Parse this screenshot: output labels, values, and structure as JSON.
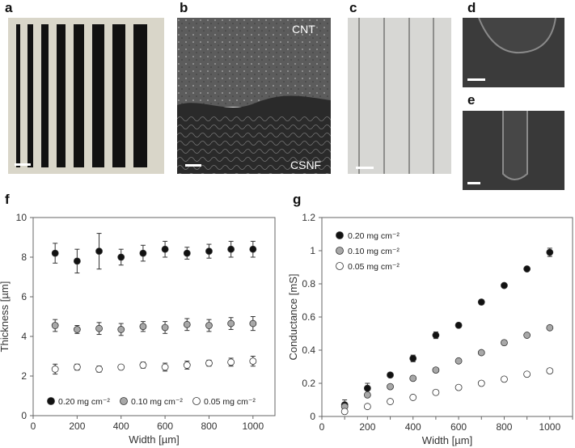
{
  "panels": {
    "a": "a",
    "b": "b",
    "c": "c",
    "d": "d",
    "e": "e",
    "f": "f",
    "g": "g"
  },
  "micrograph_labels": {
    "top": "CNT",
    "bottom": "CSNF"
  },
  "chart_data": [
    {
      "type": "scatter",
      "panel": "f",
      "xlabel": "Width [µm]",
      "ylabel": "Thickness [µm]",
      "xlim": [
        0,
        1100
      ],
      "ylim": [
        0,
        10
      ],
      "xticks": [
        0,
        200,
        400,
        600,
        800,
        1000
      ],
      "yticks": [
        0,
        2,
        4,
        6,
        8,
        10
      ],
      "grid": false,
      "legend_position": "bottom",
      "series": [
        {
          "name": "0.20 mg cm⁻²",
          "fill": "#111111",
          "x": [
            100,
            200,
            300,
            400,
            500,
            600,
            700,
            800,
            900,
            1000
          ],
          "y": [
            8.2,
            7.8,
            8.3,
            8.0,
            8.2,
            8.4,
            8.2,
            8.3,
            8.4,
            8.4
          ],
          "err": [
            0.5,
            0.6,
            0.9,
            0.4,
            0.4,
            0.4,
            0.3,
            0.35,
            0.4,
            0.4
          ]
        },
        {
          "name": "0.10 mg cm⁻²",
          "fill": "#a8a8a8",
          "x": [
            100,
            200,
            300,
            400,
            500,
            600,
            700,
            800,
            900,
            1000
          ],
          "y": [
            4.55,
            4.35,
            4.4,
            4.35,
            4.5,
            4.45,
            4.6,
            4.55,
            4.65,
            4.65
          ],
          "err": [
            0.3,
            0.2,
            0.3,
            0.3,
            0.25,
            0.3,
            0.3,
            0.3,
            0.3,
            0.35
          ]
        },
        {
          "name": "0.05 mg cm⁻²",
          "fill": "#ffffff",
          "x": [
            100,
            200,
            300,
            400,
            500,
            600,
            700,
            800,
            900,
            1000
          ],
          "y": [
            2.35,
            2.45,
            2.35,
            2.45,
            2.55,
            2.45,
            2.55,
            2.65,
            2.7,
            2.75
          ],
          "err": [
            0.25,
            0.15,
            0.15,
            0.1,
            0.15,
            0.2,
            0.2,
            0.15,
            0.2,
            0.25
          ]
        }
      ]
    },
    {
      "type": "scatter",
      "panel": "g",
      "xlabel": "Width [µm]",
      "ylabel": "Conductance [mS]",
      "xlim": [
        0,
        1100
      ],
      "ylim": [
        0,
        1.2
      ],
      "xticks": [
        0,
        100,
        200,
        300,
        400,
        500,
        600,
        700,
        800,
        900,
        1000,
        1100
      ],
      "xtick_labels": [
        "0",
        "",
        "200",
        "",
        "400",
        "",
        "600",
        "",
        "800",
        "",
        "1000",
        ""
      ],
      "yticks": [
        0,
        0.2,
        0.4,
        0.6,
        0.8,
        1.0,
        1.2
      ],
      "ytick_labels": [
        "0",
        "0.2",
        "0.4",
        "0.6",
        "0.8",
        "1",
        "1.2"
      ],
      "grid": false,
      "legend_position": "top-left",
      "series": [
        {
          "name": "0.20 mg cm⁻²",
          "fill": "#111111",
          "x": [
            100,
            200,
            300,
            400,
            500,
            600,
            700,
            800,
            900,
            1000
          ],
          "y": [
            0.07,
            0.17,
            0.25,
            0.35,
            0.49,
            0.55,
            0.69,
            0.79,
            0.89,
            0.99
          ],
          "err": [
            0.03,
            0.03,
            0.0,
            0.02,
            0.02,
            0.0,
            0.015,
            0.0,
            0.0,
            0.025
          ]
        },
        {
          "name": "0.10 mg cm⁻²",
          "fill": "#a8a8a8",
          "x": [
            100,
            200,
            300,
            400,
            500,
            600,
            700,
            800,
            900,
            1000
          ],
          "y": [
            0.06,
            0.13,
            0.18,
            0.23,
            0.28,
            0.335,
            0.385,
            0.445,
            0.49,
            0.535
          ],
          "err": [
            0,
            0,
            0,
            0,
            0,
            0,
            0,
            0,
            0,
            0
          ]
        },
        {
          "name": "0.05 mg cm⁻²",
          "fill": "#ffffff",
          "x": [
            100,
            200,
            300,
            400,
            500,
            600,
            700,
            800,
            900,
            1000
          ],
          "y": [
            0.03,
            0.06,
            0.09,
            0.115,
            0.145,
            0.175,
            0.2,
            0.225,
            0.255,
            0.275
          ],
          "err": [
            0,
            0,
            0,
            0,
            0,
            0,
            0,
            0,
            0,
            0
          ]
        }
      ]
    }
  ]
}
